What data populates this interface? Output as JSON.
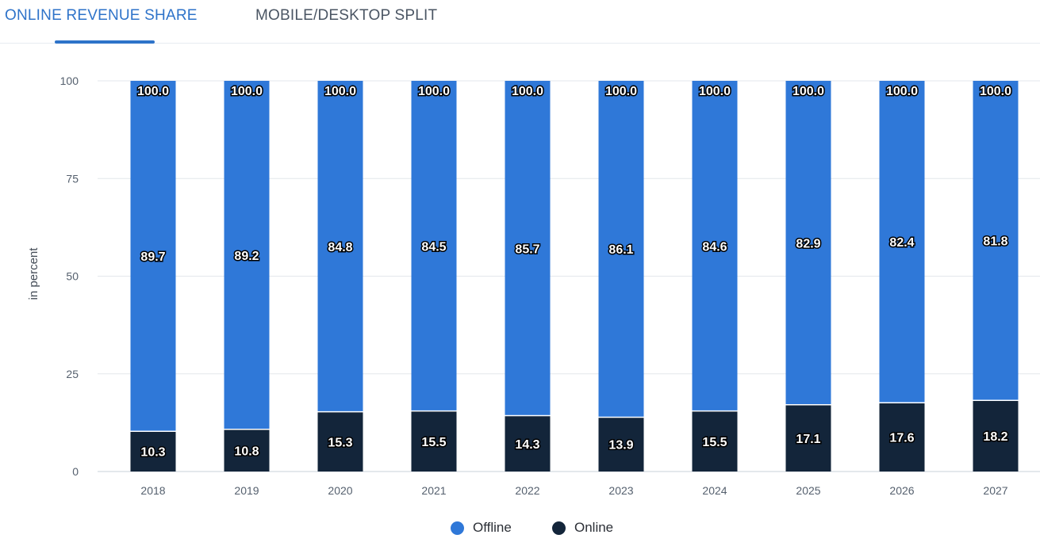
{
  "tabs": {
    "active_label": "ONLINE REVENUE SHARE",
    "inactive_label": "MOBILE/DESKTOP SPLIT"
  },
  "colors": {
    "offline": "#2f78d8",
    "online": "#13253a",
    "accent": "#2e73c9"
  },
  "chart_data": {
    "type": "bar",
    "stacked": true,
    "categories": [
      "2018",
      "2019",
      "2020",
      "2021",
      "2022",
      "2023",
      "2024",
      "2025",
      "2026",
      "2027"
    ],
    "series": [
      {
        "name": "Online",
        "values": [
          10.3,
          10.8,
          15.3,
          15.5,
          14.3,
          13.9,
          15.5,
          17.1,
          17.6,
          18.2
        ]
      },
      {
        "name": "Offline",
        "values": [
          89.7,
          89.2,
          84.8,
          84.5,
          85.7,
          86.1,
          84.6,
          82.9,
          82.4,
          81.8
        ]
      }
    ],
    "totals": [
      100.0,
      100.0,
      100.0,
      100.0,
      100.0,
      100.0,
      100.0,
      100.0,
      100.0,
      100.0
    ],
    "ylabel": "in percent",
    "ylim": [
      0,
      100
    ],
    "yticks": [
      0,
      25,
      50,
      75,
      100
    ],
    "grid": true,
    "legend": {
      "position": "bottom",
      "entries": [
        "Offline",
        "Online"
      ]
    }
  }
}
